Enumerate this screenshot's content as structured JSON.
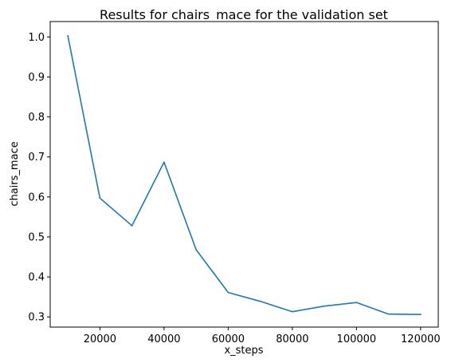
{
  "chart_data": {
    "type": "line",
    "title": "Results for chairs_mace for the validation set",
    "xlabel": "x_steps",
    "ylabel": "chairs_mace",
    "xlim": [
      4500,
      125500
    ],
    "ylim": [
      0.2745,
      1.0385
    ],
    "xticks": [
      20000,
      40000,
      60000,
      80000,
      100000,
      120000
    ],
    "xtick_labels": [
      "20000",
      "40000",
      "60000",
      "80000",
      "100000",
      "120000"
    ],
    "yticks": [
      0.3,
      0.4,
      0.5,
      0.6,
      0.7,
      0.8,
      0.9,
      1.0
    ],
    "ytick_labels": [
      "0.3",
      "0.4",
      "0.5",
      "0.6",
      "0.7",
      "0.8",
      "0.9",
      "1.0"
    ],
    "grid": false,
    "series": [
      {
        "color": "#1f77b4",
        "x": [
          10000,
          20000,
          30000,
          40000,
          50000,
          60000,
          70000,
          80000,
          90000,
          100000,
          110000,
          120000
        ],
        "y": [
          1.003,
          0.597,
          0.528,
          0.687,
          0.468,
          0.361,
          0.339,
          0.313,
          0.327,
          0.336,
          0.307,
          0.306
        ]
      }
    ]
  }
}
